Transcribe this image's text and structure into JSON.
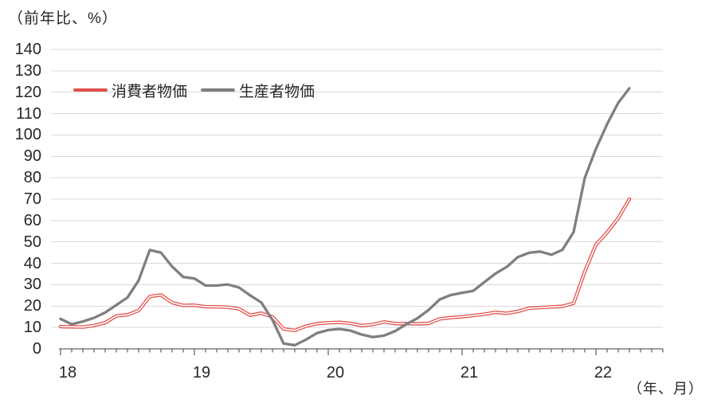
{
  "chart_data": {
    "type": "line",
    "title": "（前年比、%）",
    "xlabel": "（年、月）",
    "ylim": [
      0,
      140
    ],
    "ytick_step": 10,
    "y_tick_labels": [
      "0",
      "10",
      "20",
      "30",
      "40",
      "50",
      "60",
      "70",
      "80",
      "90",
      "100",
      "110",
      "120",
      "130",
      "140"
    ],
    "x_year_labels": [
      "18",
      "19",
      "20",
      "21",
      "22"
    ],
    "grid": "horizontal",
    "legend_position": "top-left-inside",
    "colors": {
      "consumer": "#e2514b",
      "producer": "#7f7f7f",
      "gridline": "#d9d9d9",
      "axis": "#3d3d3d",
      "text": "#262626",
      "background": "#ffffff"
    },
    "series": [
      {
        "name": "消費者物価",
        "color": "#e2514b",
        "line_style": "double-white-core",
        "values": [
          10.4,
          10.3,
          10.2,
          10.9,
          12.2,
          15.4,
          15.9,
          17.9,
          24.5,
          25.2,
          21.6,
          20.3,
          20.4,
          19.7,
          19.7,
          19.5,
          18.7,
          15.7,
          16.7,
          15.0,
          9.3,
          8.6,
          10.6,
          11.8,
          12.2,
          12.4,
          11.9,
          10.9,
          11.4,
          12.6,
          11.8,
          11.8,
          11.7,
          11.9,
          14.0,
          14.6,
          15.0,
          15.6,
          16.2,
          17.1,
          16.6,
          17.5,
          19.0,
          19.3,
          19.6,
          19.9,
          21.3,
          36.1,
          48.7,
          54.4,
          61.1,
          70.0
        ]
      },
      {
        "name": "生産者物価",
        "color": "#7f7f7f",
        "line_style": "solid",
        "values": [
          14.0,
          11.5,
          12.8,
          14.5,
          17.0,
          20.5,
          24.0,
          32.0,
          46.2,
          45.0,
          38.5,
          33.6,
          32.9,
          29.6,
          29.6,
          30.1,
          28.7,
          25.0,
          21.7,
          13.5,
          2.5,
          1.7,
          4.3,
          7.4,
          8.8,
          9.3,
          8.5,
          6.7,
          5.5,
          6.2,
          8.3,
          11.5,
          14.3,
          18.2,
          23.1,
          25.2,
          26.2,
          27.1,
          31.2,
          35.2,
          38.3,
          42.9,
          44.9,
          45.5,
          44.0,
          46.3,
          54.6,
          79.9,
          93.5,
          105.0,
          115.0,
          121.8
        ]
      }
    ]
  }
}
